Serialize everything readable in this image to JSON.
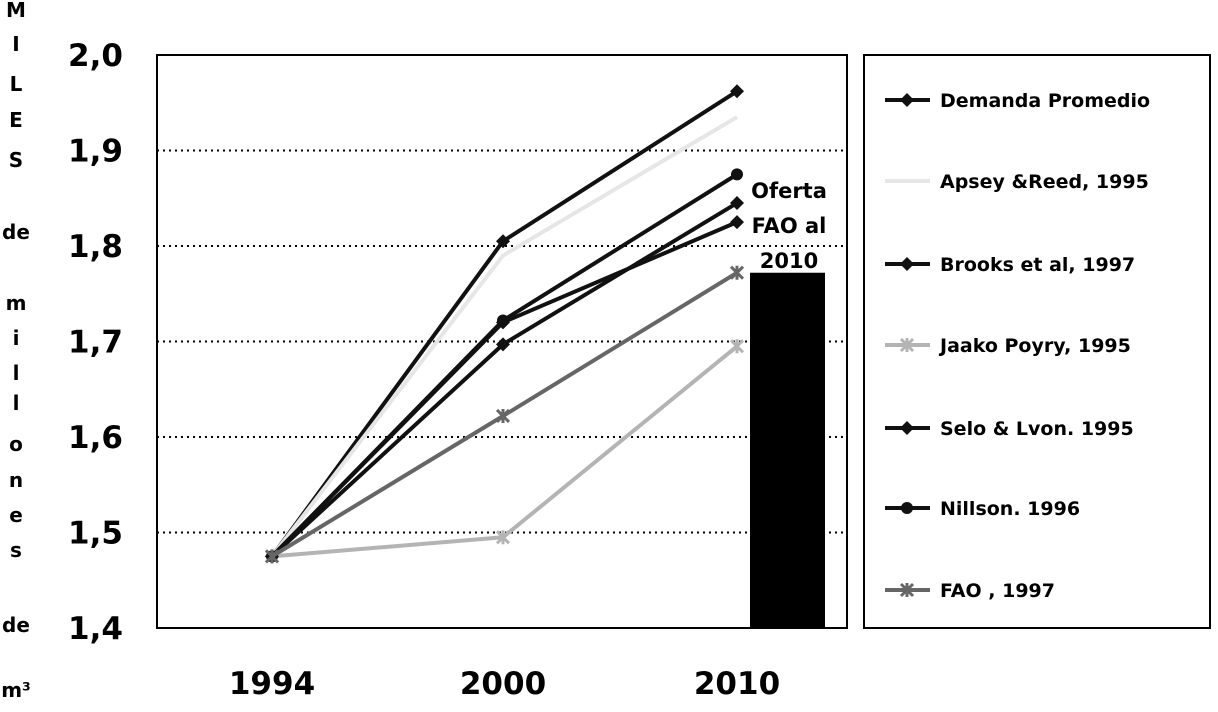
{
  "chart_data": {
    "type": "line",
    "title": "",
    "xlabel": "",
    "ylabel_letters": [
      "M",
      "I",
      "L",
      "E",
      "S",
      "de",
      "m",
      "i",
      "l",
      "l",
      "o",
      "n",
      "e",
      "s",
      "de",
      "m³"
    ],
    "x": [
      "1994",
      "2000",
      "2010"
    ],
    "ylim": [
      1.4,
      2.0
    ],
    "yticks": [
      "2,0",
      "1,9",
      "1,8",
      "1,7",
      "1,6",
      "1,5",
      "1,4"
    ],
    "ytick_values": [
      2.0,
      1.9,
      1.8,
      1.7,
      1.6,
      1.5,
      1.4
    ],
    "grid": true,
    "legend_position": "right",
    "series": [
      {
        "name": "Demanda Promedio",
        "values": [
          1.475,
          1.805,
          1.962
        ],
        "color": "#111111",
        "marker": "diamond"
      },
      {
        "name": "Apsey &Reed, 1995",
        "values": [
          1.475,
          1.79,
          1.935
        ],
        "color": "#e6e6e6",
        "marker": "none"
      },
      {
        "name": "Brooks et al, 1997",
        "values": [
          1.475,
          1.72,
          1.825
        ],
        "color": "#111111",
        "marker": "diamond"
      },
      {
        "name": "Jaako Poyry, 1995",
        "values": [
          1.475,
          1.495,
          1.695
        ],
        "color": "#b4b4b4",
        "marker": "cross"
      },
      {
        "name": "Selo & Lvon. 1995",
        "values": [
          1.475,
          1.697,
          1.845
        ],
        "color": "#111111",
        "marker": "diamond"
      },
      {
        "name": "Nillson. 1996",
        "values": [
          1.475,
          1.722,
          1.875
        ],
        "color": "#111111",
        "marker": "circle"
      },
      {
        "name": "FAO , 1997",
        "values": [
          1.475,
          1.622,
          1.772
        ],
        "color": "#666666",
        "marker": "cross"
      }
    ],
    "bar": {
      "category": "2010",
      "value": 1.772,
      "color": "#000000"
    },
    "annotation": [
      "Oferta",
      "FAO al",
      "2010"
    ]
  }
}
